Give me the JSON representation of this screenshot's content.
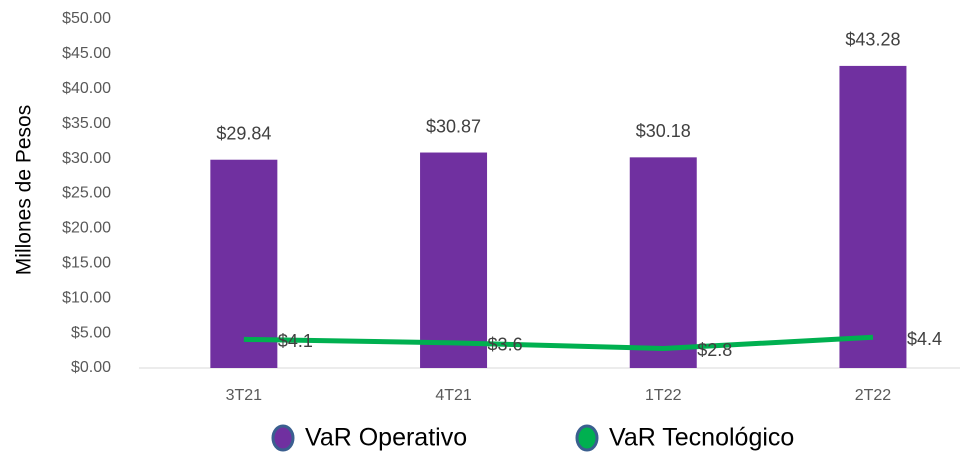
{
  "chart_data": {
    "type": "bar",
    "y_axis_label": "Millones de Pesos",
    "categories": [
      "3T21",
      "4T21",
      "1T22",
      "2T22"
    ],
    "series": [
      {
        "name": "VaR Operativo",
        "type": "bar",
        "color": "#7030a0",
        "values": [
          29.84,
          30.87,
          30.18,
          43.28
        ],
        "value_labels": [
          "$29.84",
          "$30.87",
          "$30.18",
          "$43.28"
        ]
      },
      {
        "name": "VaR Tecnológico",
        "type": "line",
        "color": "#00b050",
        "values": [
          4.1,
          3.6,
          2.8,
          4.4
        ],
        "value_labels": [
          "$4.1",
          "$3.6",
          "$2.8",
          "$4.4"
        ]
      }
    ],
    "ylim": [
      0,
      50
    ],
    "yticks": [
      {
        "value": 0,
        "label": "$0.00"
      },
      {
        "value": 5,
        "label": "$5.00"
      },
      {
        "value": 10,
        "label": "$10.00"
      },
      {
        "value": 15,
        "label": "$15.00"
      },
      {
        "value": 20,
        "label": "$20.00"
      },
      {
        "value": 25,
        "label": "$25.00"
      },
      {
        "value": 30,
        "label": "$30.00"
      },
      {
        "value": 35,
        "label": "$35.00"
      },
      {
        "value": 40,
        "label": "$40.00"
      },
      {
        "value": 45,
        "label": "$45.00"
      },
      {
        "value": 50,
        "label": "$50.00"
      }
    ],
    "grid": false,
    "legend": "bottom"
  }
}
